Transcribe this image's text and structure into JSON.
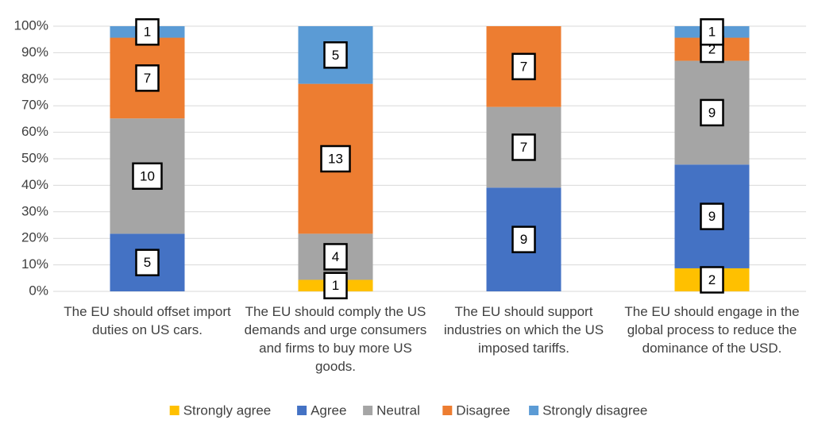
{
  "chart_data": {
    "type": "percent_stacked_bar",
    "categories": [
      "The EU should offset import duties on US cars.",
      "The EU should comply the US demands and urge consumers and firms to buy more US goods.",
      "The EU should support industries on which the US imposed tariffs.",
      "The EU should engage in the global process to reduce the dominance of the USD."
    ],
    "series": [
      {
        "name": "Strongly agree",
        "color": "#ffc000",
        "values": [
          0,
          1,
          0,
          2
        ]
      },
      {
        "name": "Agree",
        "color": "#4472c4",
        "values": [
          5,
          0,
          9,
          9
        ]
      },
      {
        "name": "Neutral",
        "color": "#a5a5a5",
        "values": [
          10,
          4,
          7,
          9
        ]
      },
      {
        "name": "Disagree",
        "color": "#ed7d31",
        "values": [
          7,
          13,
          7,
          2
        ]
      },
      {
        "name": "Strongly disagree",
        "color": "#5b9bd5",
        "values": [
          1,
          5,
          0,
          1
        ]
      }
    ],
    "ylim": [
      0,
      100
    ],
    "yticks": [
      {
        "value": 0,
        "label": "0%"
      },
      {
        "value": 10,
        "label": "10%"
      },
      {
        "value": 20,
        "label": "20%"
      },
      {
        "value": 30,
        "label": "30%"
      },
      {
        "value": 40,
        "label": "40%"
      },
      {
        "value": 50,
        "label": "50%"
      },
      {
        "value": 60,
        "label": "60%"
      },
      {
        "value": 70,
        "label": "70%"
      },
      {
        "value": 80,
        "label": "80%"
      },
      {
        "value": 90,
        "label": "90%"
      },
      {
        "value": 100,
        "label": "100%"
      }
    ],
    "grid": true,
    "legend": "bottom"
  }
}
